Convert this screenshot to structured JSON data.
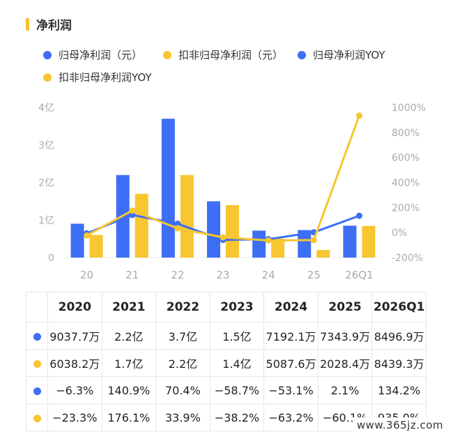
{
  "title": "净利润",
  "legend": [
    {
      "label": "归母净利润（元）",
      "color": "#3d6ef5"
    },
    {
      "label": "扣非归母净利润（元）",
      "color": "#f7c630"
    },
    {
      "label": "归母净利润YOY",
      "color": "#3d6ef5"
    },
    {
      "label": "扣非归母净利润YOY",
      "color": "#f7c630"
    }
  ],
  "chart_data": {
    "type": "bar",
    "categories": [
      "20",
      "21",
      "22",
      "23",
      "24",
      "25",
      "26Q1"
    ],
    "y_left": {
      "ticks": [
        "0",
        "1亿",
        "2亿",
        "3亿",
        "4亿"
      ],
      "range": [
        0,
        4
      ],
      "unit": "亿"
    },
    "y_right": {
      "ticks": [
        "-200%",
        "0%",
        "200%",
        "400%",
        "600%",
        "800%",
        "1000%"
      ],
      "range": [
        -200,
        1000
      ]
    },
    "bar_series": [
      {
        "name": "归母净利润（元）",
        "color": "#3d6ef5",
        "values": [
          0.903,
          2.2,
          3.7,
          1.5,
          0.719,
          0.734,
          0.85
        ]
      },
      {
        "name": "扣非归母净利润（元）",
        "color": "#f7c630",
        "values": [
          0.604,
          1.7,
          2.2,
          1.4,
          0.509,
          0.203,
          0.844
        ]
      }
    ],
    "line_series": [
      {
        "name": "归母净利润YOY",
        "color": "#3d6ef5",
        "values": [
          -6.3,
          140.9,
          70.4,
          -58.7,
          -53.1,
          2.1,
          134.2
        ]
      },
      {
        "name": "扣非归母净利润YOY",
        "color": "#f7c630",
        "values": [
          -23.3,
          176.1,
          33.9,
          -38.2,
          -63.2,
          -60.1,
          935.0
        ]
      }
    ],
    "grid": false
  },
  "table": {
    "headers": [
      "2020",
      "2021",
      "2022",
      "2023",
      "2024",
      "2025",
      "2026Q1"
    ],
    "rows": [
      {
        "color": "#3d6ef5",
        "cells": [
          "9037.7万",
          "2.2亿",
          "3.7亿",
          "1.5亿",
          "7192.1万",
          "7343.9万",
          "8496.9万"
        ]
      },
      {
        "color": "#f7c630",
        "cells": [
          "6038.2万",
          "1.7亿",
          "2.2亿",
          "1.4亿",
          "5087.6万",
          "2028.4万",
          "8439.3万"
        ]
      },
      {
        "color": "#3d6ef5",
        "cells": [
          "−6.3%",
          "140.9%",
          "70.4%",
          "−58.7%",
          "−53.1%",
          "2.1%",
          "134.2%"
        ]
      },
      {
        "color": "#f7c630",
        "cells": [
          "−23.3%",
          "176.1%",
          "33.9%",
          "−38.2%",
          "−63.2%",
          "−60.1%",
          "935.0%"
        ]
      }
    ]
  },
  "watermark": "www.365jz.com"
}
